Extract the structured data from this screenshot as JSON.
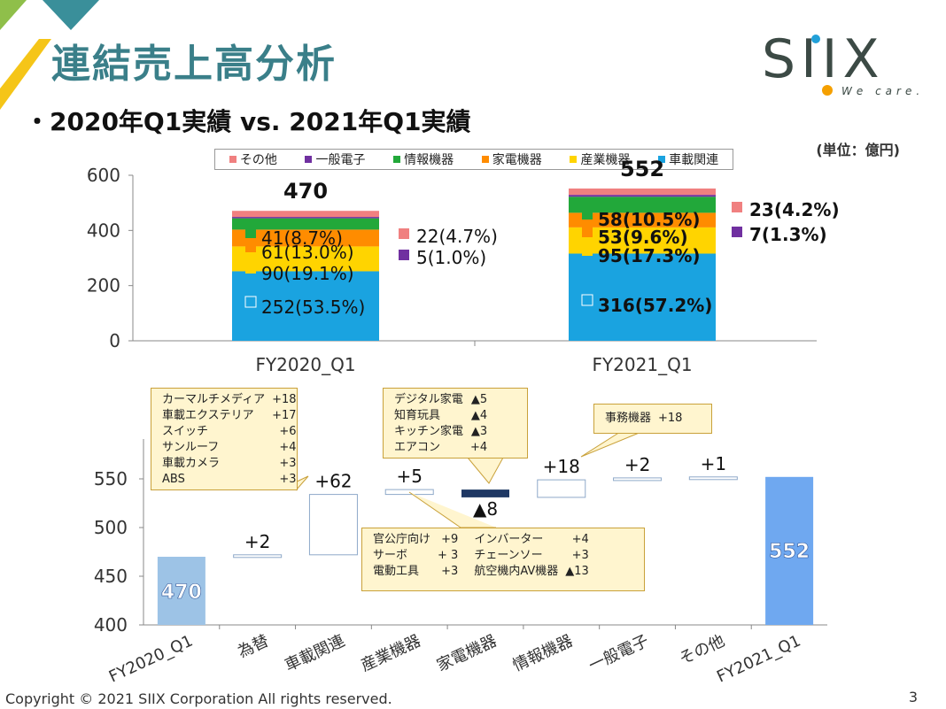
{
  "header": {
    "title": "連結売上高分析",
    "subtitle": "・2020年Q1実績 vs. 2021年Q1実績",
    "unit": "(単位：億円)"
  },
  "logo": {
    "name": "SIIX",
    "tagline": "We care."
  },
  "footer": {
    "copyright": "Copyright © 2021 SIIX Corporation All rights reserved.",
    "page": "3"
  },
  "colors": {
    "車載関連": "#1aa3e0",
    "産業機器": "#ffd400",
    "家電機器": "#ff8c00",
    "情報機器": "#22a83a",
    "一般電子": "#7030a0",
    "その他": "#f08080",
    "start_bar": "#9dc3e6",
    "end_bar": "#6fa8f0",
    "decrease_bar": "#1f3864"
  },
  "chart_data": [
    {
      "type": "bar",
      "stacked": true,
      "categories": [
        "FY2020_Q1",
        "FY2021_Q1"
      ],
      "ylim": [
        0,
        600
      ],
      "yticks": [
        0,
        200,
        400,
        600
      ],
      "legend": [
        "その他",
        "一般電子",
        "情報機器",
        "家電機器",
        "産業機器",
        "車載関連"
      ],
      "totals": [
        "470",
        "552"
      ],
      "series": [
        {
          "name": "車載関連",
          "values": [
            252,
            316
          ],
          "labels": [
            "252(53.5%)",
            "316(57.2%)"
          ]
        },
        {
          "name": "産業機器",
          "values": [
            90,
            95
          ],
          "labels": [
            "90(19.1%)",
            "95(17.3%)"
          ]
        },
        {
          "name": "家電機器",
          "values": [
            61,
            53
          ],
          "labels": [
            "61(13.0%)",
            "53(9.6%)"
          ]
        },
        {
          "name": "情報機器",
          "values": [
            41,
            58
          ],
          "labels": [
            "41(8.7%)",
            "58(10.5%)"
          ]
        },
        {
          "name": "一般電子",
          "values": [
            5,
            7
          ],
          "labels": [
            "5(1.0%)",
            "7(1.3%)"
          ]
        },
        {
          "name": "その他",
          "values": [
            22,
            23
          ],
          "labels": [
            "22(4.7%)",
            "23(4.2%)"
          ]
        }
      ]
    },
    {
      "type": "waterfall",
      "categories": [
        "FY2020_Q1",
        "為替",
        "車載関連",
        "産業機器",
        "家電機器",
        "情報機器",
        "一般電子",
        "その他",
        "FY2021_Q1"
      ],
      "start": 470,
      "end": 552,
      "deltas": [
        2,
        62,
        5,
        -8,
        18,
        2,
        1
      ],
      "labels": [
        "470",
        "+2",
        "+62",
        "+5",
        "▲8",
        "+18",
        "+2",
        "+1",
        "552"
      ],
      "ylim": [
        400,
        580
      ],
      "yticks": [
        400,
        450,
        500,
        550
      ]
    }
  ],
  "callouts": {
    "auto": [
      [
        "カーマルチメディア",
        "+18"
      ],
      [
        "車載エクステリア",
        "+17"
      ],
      [
        "スイッチ",
        "+6"
      ],
      [
        "サンルーフ",
        "+4"
      ],
      [
        "車載カメラ",
        "+3"
      ],
      [
        "ABS",
        "+3"
      ]
    ],
    "appliance": [
      [
        "デジタル家電",
        "▲5"
      ],
      [
        "知育玩具",
        "▲4"
      ],
      [
        "キッチン家電",
        "▲3"
      ],
      [
        "エアコン",
        "+4"
      ]
    ],
    "info": [
      [
        "事務機器",
        "+18"
      ]
    ],
    "industrial": [
      [
        "官公庁向け",
        "+9",
        "インバーター",
        "+4"
      ],
      [
        "サーボ",
        "+ 3",
        "チェーンソー",
        "+3"
      ],
      [
        "電動工具",
        "+3",
        "航空機内AV機器",
        "▲13"
      ]
    ]
  }
}
